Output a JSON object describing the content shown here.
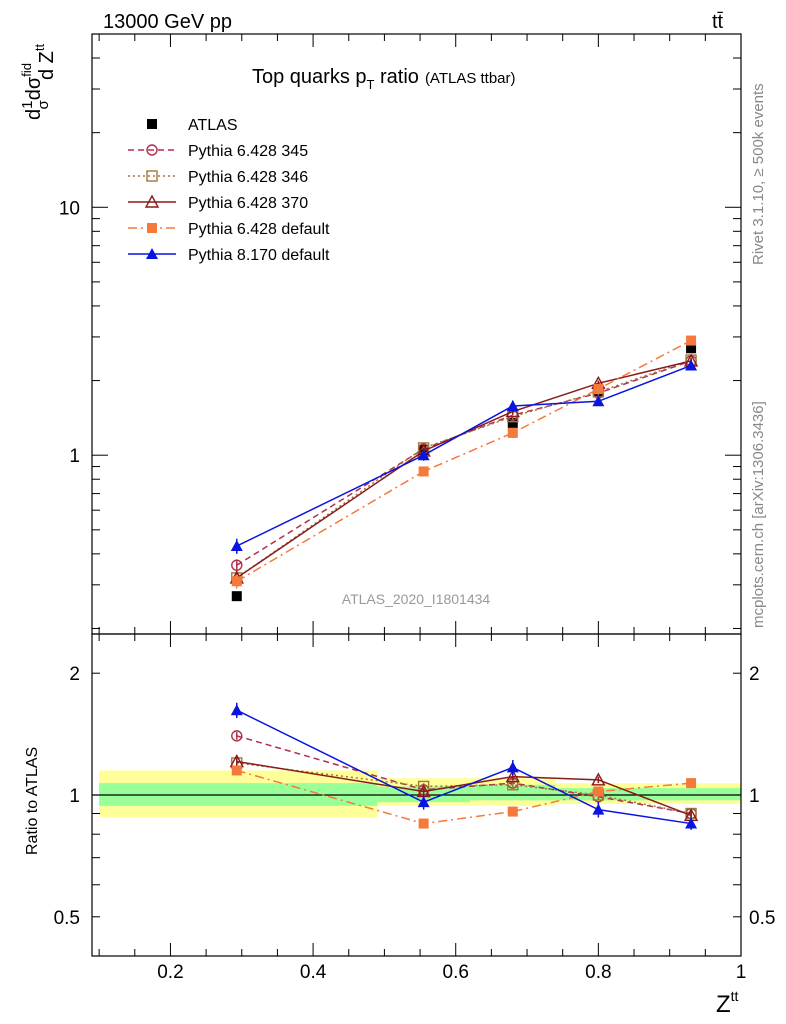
{
  "header": {
    "energy_label": "13000 GeV pp",
    "process_label": "tt̄"
  },
  "side_labels": {
    "rivet": "Rivet 3.1.10, ≥ 500k events",
    "mcplots": "mcplots.cern.ch [arXiv:1306.3436]"
  },
  "title": {
    "main": "Top quarks p",
    "sub": "T",
    "main2": " ratio",
    "tag": "(ATLAS ttbar)"
  },
  "analysis_id": "ATLAS_2020_I1801434",
  "ylabel_top": {
    "a": "d",
    "b": "1",
    "c": "σ",
    "d": "dσ",
    "e": "fid",
    "f": "d Z",
    "g": "tt"
  },
  "ylabel_bottom": "Ratio to ATLAS",
  "xlabel": {
    "main": "Z",
    "sup": "tt"
  },
  "colors": {
    "band_inner": "#99ff99",
    "band_outer": "#ffff99"
  },
  "chart_data": [
    {
      "type": "scatter",
      "panel": "main",
      "yscale": "log",
      "xlim": [
        0.09,
        1.0
      ],
      "ylim": [
        0.19,
        50
      ],
      "ytick_labels": [
        "1",
        "10"
      ],
      "ytick_values": [
        1,
        10
      ],
      "series": [
        {
          "name": "ATLAS",
          "color": "#000000",
          "marker": "square-filled",
          "line": "none",
          "x": [
            0.293,
            0.555,
            0.68,
            0.8,
            0.93
          ],
          "y": [
            0.27,
            1.05,
            1.35,
            1.8,
            2.7
          ]
        },
        {
          "name": "Pythia 6.428 345",
          "color": "#b22e4a",
          "marker": "circle-open",
          "line": "dashed",
          "x": [
            0.293,
            0.555,
            0.68,
            0.8,
            0.93
          ],
          "y": [
            0.36,
            1.06,
            1.45,
            1.78,
            2.4
          ],
          "err": [
            0.02,
            0.03,
            0.04,
            0.05,
            0.06
          ]
        },
        {
          "name": "Pythia 6.428 346",
          "color": "#9c7a3c",
          "marker": "square-open",
          "line": "dotted",
          "x": [
            0.293,
            0.555,
            0.68,
            0.8,
            0.93
          ],
          "y": [
            0.32,
            1.07,
            1.43,
            1.8,
            2.42
          ],
          "err": [
            0.02,
            0.03,
            0.04,
            0.05,
            0.06
          ]
        },
        {
          "name": "Pythia 6.428 370",
          "color": "#8b1a1a",
          "marker": "triangle-open",
          "line": "solid",
          "x": [
            0.293,
            0.555,
            0.68,
            0.8,
            0.93
          ],
          "y": [
            0.32,
            1.04,
            1.5,
            1.95,
            2.4
          ],
          "err": [
            0.02,
            0.03,
            0.04,
            0.05,
            0.06
          ]
        },
        {
          "name": "Pythia 6.428 default",
          "color": "#f5793a",
          "marker": "square-filled",
          "line": "dashdot",
          "x": [
            0.293,
            0.555,
            0.68,
            0.8,
            0.93
          ],
          "y": [
            0.31,
            0.86,
            1.23,
            1.85,
            2.9
          ],
          "err": [
            0.02,
            0.03,
            0.04,
            0.05,
            0.07
          ]
        },
        {
          "name": "Pythia 8.170 default",
          "color": "#0a14e0",
          "marker": "triangle-filled",
          "line": "solid",
          "x": [
            0.293,
            0.555,
            0.68,
            0.8,
            0.93
          ],
          "y": [
            0.43,
            1.0,
            1.58,
            1.65,
            2.3
          ],
          "err": [
            0.03,
            0.05,
            0.08,
            0.07,
            0.08
          ]
        }
      ]
    },
    {
      "type": "scatter",
      "panel": "ratio",
      "yscale": "log",
      "xlim": [
        0.09,
        1.0
      ],
      "ylim": [
        0.4,
        2.5
      ],
      "ytick_labels": [
        "0.5",
        "1",
        "2"
      ],
      "ytick_values": [
        0.5,
        1,
        2
      ],
      "xtick_labels": [
        "0.2",
        "0.4",
        "0.6",
        "0.8",
        "1"
      ],
      "xtick_values": [
        0.2,
        0.4,
        0.6,
        0.8,
        1.0
      ],
      "bands": [
        {
          "x0": 0.1,
          "x1": 0.49,
          "inner": [
            0.94,
            1.07
          ],
          "outer": [
            0.88,
            1.15
          ]
        },
        {
          "x0": 0.49,
          "x1": 0.62,
          "inner": [
            0.96,
            1.05
          ],
          "outer": [
            0.94,
            1.1
          ]
        },
        {
          "x0": 0.62,
          "x1": 0.74,
          "inner": [
            0.97,
            1.06
          ],
          "outer": [
            0.94,
            1.1
          ]
        },
        {
          "x0": 0.74,
          "x1": 0.86,
          "inner": [
            0.97,
            1.04
          ],
          "outer": [
            0.95,
            1.07
          ]
        },
        {
          "x0": 0.86,
          "x1": 1.0,
          "inner": [
            0.97,
            1.04
          ],
          "outer": [
            0.95,
            1.07
          ]
        }
      ],
      "series": [
        {
          "name": "Pythia 6.428 345",
          "color": "#b22e4a",
          "marker": "circle-open",
          "line": "dashed",
          "x": [
            0.293,
            0.555,
            0.68,
            0.8,
            0.93
          ],
          "y": [
            1.4,
            1.03,
            1.07,
            0.99,
            0.9
          ],
          "err": [
            0.03,
            0.02,
            0.02,
            0.02,
            0.02
          ]
        },
        {
          "name": "Pythia 6.428 346",
          "color": "#9c7a3c",
          "marker": "square-open",
          "line": "dotted",
          "x": [
            0.293,
            0.555,
            0.68,
            0.8,
            0.93
          ],
          "y": [
            1.2,
            1.05,
            1.06,
            1.0,
            0.9
          ],
          "err": [
            0.03,
            0.02,
            0.02,
            0.02,
            0.02
          ]
        },
        {
          "name": "Pythia 6.428 370",
          "color": "#8b1a1a",
          "marker": "triangle-open",
          "line": "solid",
          "x": [
            0.293,
            0.555,
            0.68,
            0.8,
            0.93
          ],
          "y": [
            1.21,
            1.02,
            1.11,
            1.09,
            0.89
          ],
          "err": [
            0.03,
            0.02,
            0.02,
            0.02,
            0.02
          ]
        },
        {
          "name": "Pythia 6.428 default",
          "color": "#f5793a",
          "marker": "square-filled",
          "line": "dashdot",
          "x": [
            0.293,
            0.555,
            0.68,
            0.8,
            0.93
          ],
          "y": [
            1.15,
            0.85,
            0.91,
            1.02,
            1.07
          ],
          "err": [
            0.03,
            0.02,
            0.02,
            0.02,
            0.02
          ]
        },
        {
          "name": "Pythia 8.170 default",
          "color": "#0a14e0",
          "marker": "triangle-filled",
          "line": "solid",
          "x": [
            0.293,
            0.555,
            0.68,
            0.8,
            0.93
          ],
          "y": [
            1.62,
            0.96,
            1.17,
            0.92,
            0.85
          ],
          "err": [
            0.07,
            0.04,
            0.05,
            0.04,
            0.03
          ]
        }
      ]
    }
  ]
}
